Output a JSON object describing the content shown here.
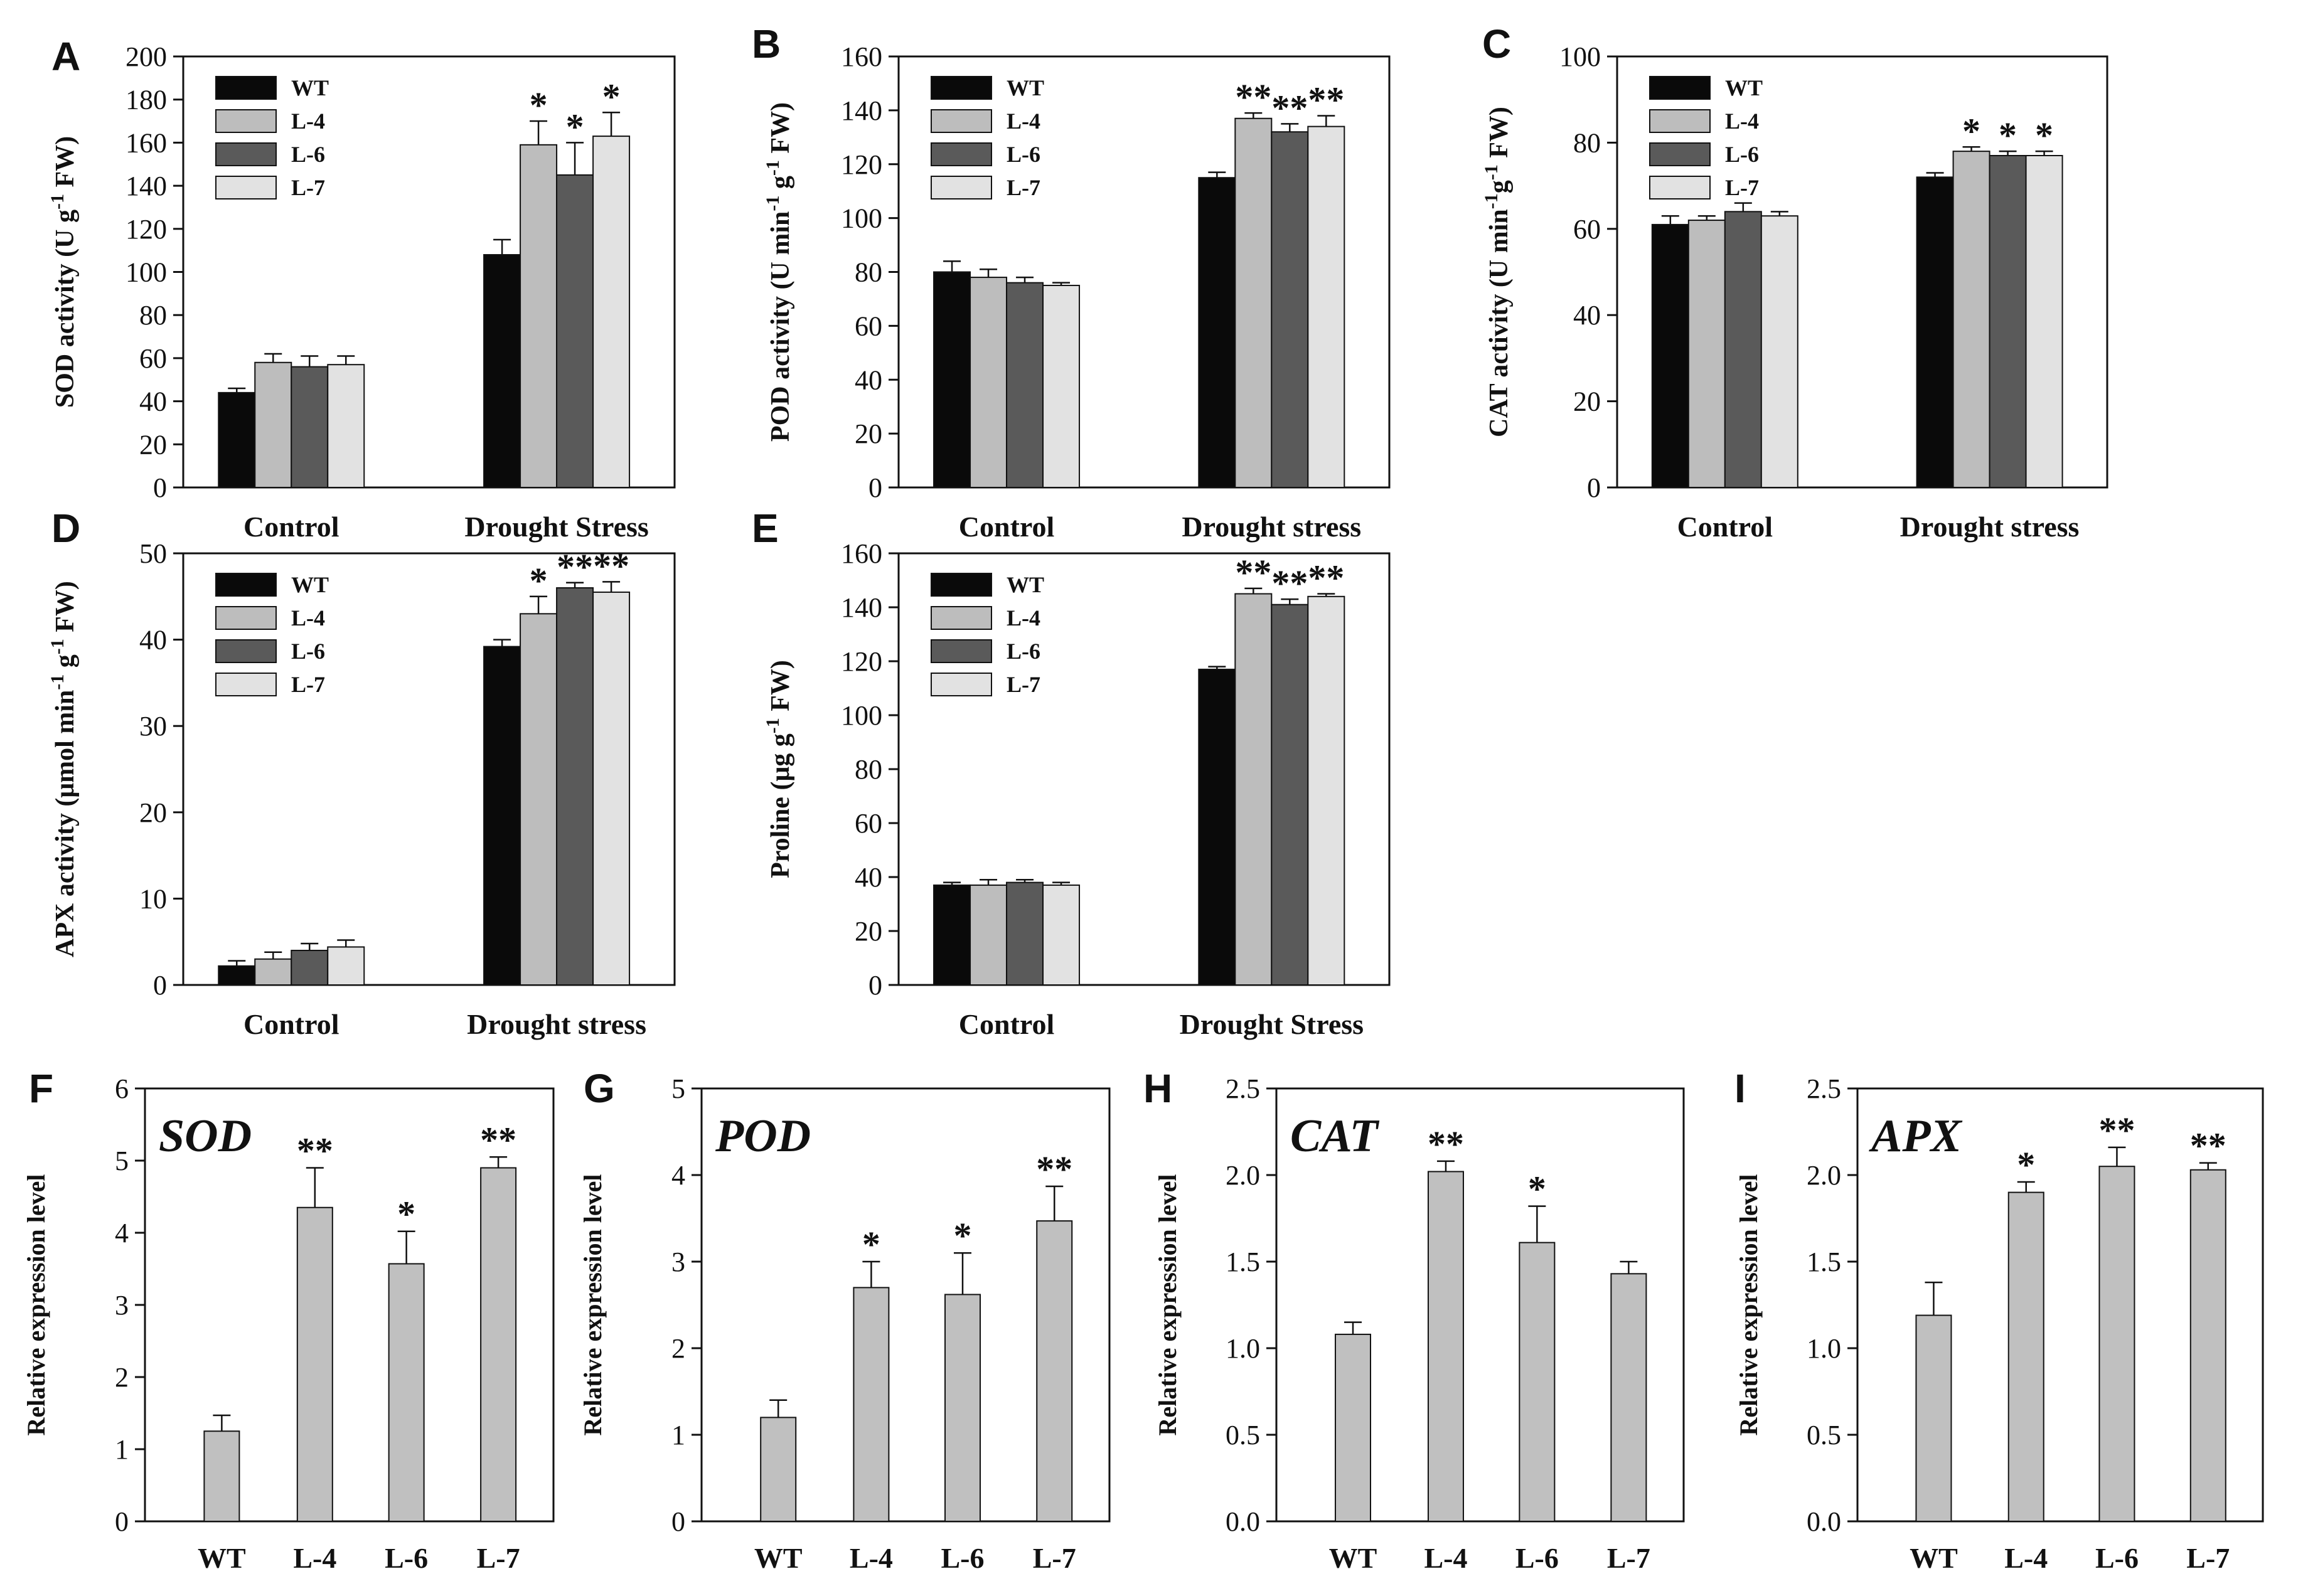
{
  "figure": {
    "colors": {
      "WT": "#0a0a0a",
      "L-4": "#bdbdbd",
      "L-6": "#5a5a5a",
      "L-7": "#e2e2e2",
      "expression_bar": "#c0c0c0",
      "axis": "#111111"
    }
  },
  "chart_data": [
    {
      "panel": "A",
      "type": "bar",
      "ylabel": "SOD activity (U g-1 FW)",
      "ylabel_parts": [
        "SOD activity (U g",
        "-1",
        " FW)"
      ],
      "ylim": [
        0,
        200
      ],
      "yticks": [
        0,
        20,
        40,
        60,
        80,
        100,
        120,
        140,
        160,
        180,
        200
      ],
      "categories": [
        "Control",
        "Drought Stress"
      ],
      "legend": [
        "WT",
        "L-4",
        "L-6",
        "L-7"
      ],
      "series": [
        {
          "name": "WT",
          "values": [
            44,
            108
          ],
          "errors": [
            2,
            7
          ],
          "sig": [
            "",
            ""
          ]
        },
        {
          "name": "L-4",
          "values": [
            58,
            159
          ],
          "errors": [
            4,
            11
          ],
          "sig": [
            "",
            "*"
          ]
        },
        {
          "name": "L-6",
          "values": [
            56,
            145
          ],
          "errors": [
            5,
            15
          ],
          "sig": [
            "",
            "*"
          ]
        },
        {
          "name": "L-7",
          "values": [
            57,
            163
          ],
          "errors": [
            4,
            11
          ],
          "sig": [
            "",
            "*"
          ]
        }
      ]
    },
    {
      "panel": "B",
      "type": "bar",
      "ylabel": "POD activity (U min-1 g-1 FW)",
      "ylabel_parts": [
        "POD activity (U min",
        "-1",
        " g",
        "-1",
        " FW)"
      ],
      "ylim": [
        0,
        160
      ],
      "yticks": [
        0,
        20,
        40,
        60,
        80,
        100,
        120,
        140,
        160
      ],
      "categories": [
        "Control",
        "Drought stress"
      ],
      "legend": [
        "WT",
        "L-4",
        "L-6",
        "L-7"
      ],
      "series": [
        {
          "name": "WT",
          "values": [
            80,
            115
          ],
          "errors": [
            4,
            2
          ],
          "sig": [
            "",
            ""
          ]
        },
        {
          "name": "L-4",
          "values": [
            78,
            137
          ],
          "errors": [
            3,
            2
          ],
          "sig": [
            "",
            "**"
          ]
        },
        {
          "name": "L-6",
          "values": [
            76,
            132
          ],
          "errors": [
            2,
            3
          ],
          "sig": [
            "",
            "**"
          ]
        },
        {
          "name": "L-7",
          "values": [
            75,
            134
          ],
          "errors": [
            1,
            4
          ],
          "sig": [
            "",
            "**"
          ]
        }
      ]
    },
    {
      "panel": "C",
      "type": "bar",
      "ylabel": "CAT activity (U min-1g-1 FW)",
      "ylabel_parts": [
        "CAT activity (U min",
        "-1",
        "g",
        "-1",
        " FW)"
      ],
      "ylim": [
        0,
        100
      ],
      "yticks": [
        0,
        20,
        40,
        60,
        80,
        100
      ],
      "categories": [
        "Control",
        "Drought stress"
      ],
      "legend": [
        "WT",
        "L-4",
        "L-6",
        "L-7"
      ],
      "series": [
        {
          "name": "WT",
          "values": [
            61,
            72
          ],
          "errors": [
            2,
            1
          ],
          "sig": [
            "",
            ""
          ]
        },
        {
          "name": "L-4",
          "values": [
            62,
            78
          ],
          "errors": [
            1,
            1
          ],
          "sig": [
            "",
            "*"
          ]
        },
        {
          "name": "L-6",
          "values": [
            64,
            77
          ],
          "errors": [
            2,
            1
          ],
          "sig": [
            "",
            "*"
          ]
        },
        {
          "name": "L-7",
          "values": [
            63,
            77
          ],
          "errors": [
            1,
            1
          ],
          "sig": [
            "",
            "*"
          ]
        }
      ]
    },
    {
      "panel": "D",
      "type": "bar",
      "ylabel": "APX activity (μmol min-1 g-1 FW)",
      "ylabel_parts": [
        "APX activity (μmol min",
        "-1",
        " g",
        "-1",
        " FW)"
      ],
      "ylim": [
        0,
        50
      ],
      "yticks": [
        0,
        10,
        20,
        30,
        40,
        50
      ],
      "categories": [
        "Control",
        "Drought stress"
      ],
      "legend": [
        "WT",
        "L-4",
        "L-6",
        "L-7"
      ],
      "series": [
        {
          "name": "WT",
          "values": [
            2.2,
            39.2
          ],
          "errors": [
            0.6,
            0.8
          ],
          "sig": [
            "",
            ""
          ]
        },
        {
          "name": "L-4",
          "values": [
            3.0,
            43.0
          ],
          "errors": [
            0.8,
            2.0
          ],
          "sig": [
            "",
            "*"
          ]
        },
        {
          "name": "L-6",
          "values": [
            4.0,
            46.0
          ],
          "errors": [
            0.8,
            0.6
          ],
          "sig": [
            "",
            "**"
          ]
        },
        {
          "name": "L-7",
          "values": [
            4.4,
            45.5
          ],
          "errors": [
            0.8,
            1.2
          ],
          "sig": [
            "",
            "**"
          ]
        }
      ]
    },
    {
      "panel": "E",
      "type": "bar",
      "ylabel": "Proline (μg g-1 FW)",
      "ylabel_parts": [
        "Proline (μg g",
        "-1",
        " FW)"
      ],
      "ylim": [
        0,
        160
      ],
      "yticks": [
        0,
        20,
        40,
        60,
        80,
        100,
        120,
        140,
        160
      ],
      "categories": [
        "Control",
        "Drought Stress"
      ],
      "legend": [
        "WT",
        "L-4",
        "L-6",
        "L-7"
      ],
      "series": [
        {
          "name": "WT",
          "values": [
            37,
            117
          ],
          "errors": [
            1,
            1
          ],
          "sig": [
            "",
            ""
          ]
        },
        {
          "name": "L-4",
          "values": [
            37,
            145
          ],
          "errors": [
            2,
            2
          ],
          "sig": [
            "",
            "**"
          ]
        },
        {
          "name": "L-6",
          "values": [
            38,
            141
          ],
          "errors": [
            1,
            2
          ],
          "sig": [
            "",
            "**"
          ]
        },
        {
          "name": "L-7",
          "values": [
            37,
            144
          ],
          "errors": [
            1,
            1
          ],
          "sig": [
            "",
            "**"
          ]
        }
      ]
    },
    {
      "panel": "F",
      "type": "bar",
      "gene": "SOD",
      "ylabel": "Relative expression level",
      "ylim": [
        0,
        6
      ],
      "yticks": [
        "0",
        "1",
        "2",
        "3",
        "4",
        "5",
        "6"
      ],
      "categories": [
        "WT",
        "L-4",
        "L-6",
        "L-7"
      ],
      "values": [
        1.25,
        4.35,
        3.57,
        4.9
      ],
      "errors": [
        0.22,
        0.55,
        0.45,
        0.15
      ],
      "sig": [
        "",
        "**",
        "*",
        "**"
      ]
    },
    {
      "panel": "G",
      "type": "bar",
      "gene": "POD",
      "ylabel": "Relative expression level",
      "ylim": [
        0,
        5
      ],
      "yticks": [
        "0",
        "1",
        "2",
        "3",
        "4",
        "5"
      ],
      "categories": [
        "WT",
        "L-4",
        "L-6",
        "L-7"
      ],
      "values": [
        1.2,
        2.7,
        2.62,
        3.47
      ],
      "errors": [
        0.2,
        0.3,
        0.48,
        0.4
      ],
      "sig": [
        "",
        "*",
        "*",
        "**"
      ]
    },
    {
      "panel": "H",
      "type": "bar",
      "gene": "CAT",
      "ylabel": "Relative expression level",
      "ylim": [
        0,
        2.5
      ],
      "yticks": [
        "0.0",
        "0.5",
        "1.0",
        "1.5",
        "2.0",
        "2.5"
      ],
      "categories": [
        "WT",
        "L-4",
        "L-6",
        "L-7"
      ],
      "values": [
        1.08,
        2.02,
        1.61,
        1.43
      ],
      "errors": [
        0.07,
        0.06,
        0.21,
        0.07
      ],
      "sig": [
        "",
        "**",
        "*",
        ""
      ]
    },
    {
      "panel": "I",
      "type": "bar",
      "gene": "APX",
      "ylabel": "Relative expression level",
      "ylim": [
        0,
        2.5
      ],
      "yticks": [
        "0.0",
        "0.5",
        "1.0",
        "1.5",
        "2.0",
        "2.5"
      ],
      "categories": [
        "WT",
        "L-4",
        "L-6",
        "L-7"
      ],
      "values": [
        1.19,
        1.9,
        2.05,
        2.03
      ],
      "errors": [
        0.19,
        0.06,
        0.11,
        0.04
      ],
      "sig": [
        "",
        "*",
        "**",
        "**"
      ]
    }
  ]
}
